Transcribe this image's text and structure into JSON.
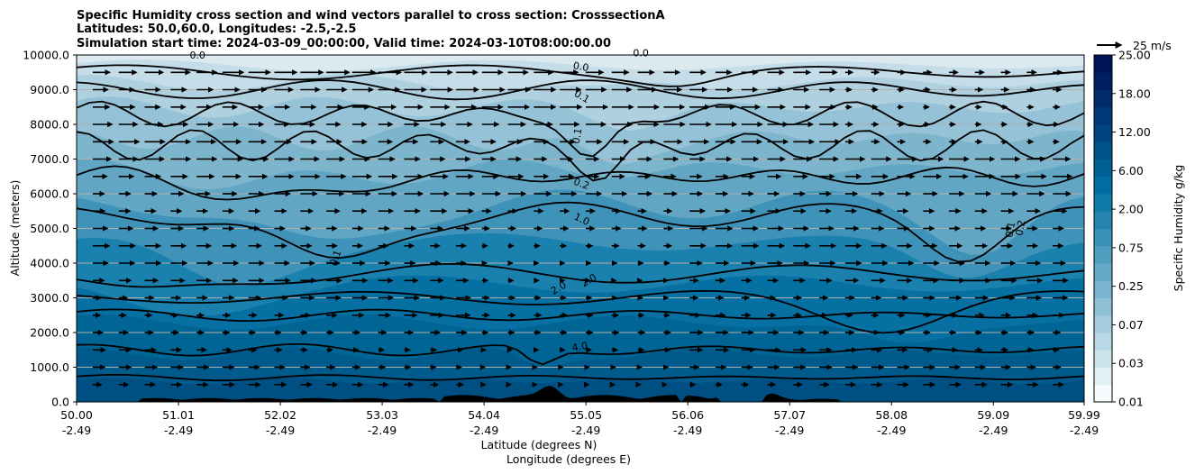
{
  "chart_data": {
    "type": "contourf",
    "title_lines": [
      "Specific Humidity cross section and wind vectors parallel to cross section: CrosssectionA",
      "Latitudes: 50.0,60.0, Longitudes: -2.5,-2.5",
      "Simulation start time: 2024-03-09_00:00:00, Valid time: 2024-03-10T08:00:00.00"
    ],
    "xlabel_lat": "Latitude (degrees N)",
    "xlabel_lon": "Longitude (degrees E)",
    "ylabel": "Altitude (meters)",
    "xlim": [
      50.0,
      59.99
    ],
    "ylim": [
      0,
      10000
    ],
    "x_ticks_lat": [
      "50.00",
      "51.01",
      "52.02",
      "53.03",
      "54.04",
      "55.05",
      "56.06",
      "57.07",
      "58.08",
      "59.09",
      "59.99"
    ],
    "x_ticks_lon": [
      "-2.49",
      "-2.49",
      "-2.49",
      "-2.49",
      "-2.49",
      "-2.49",
      "-2.49",
      "-2.49",
      "-2.49",
      "-2.49",
      "-2.49"
    ],
    "y_ticks": [
      "0.0",
      "1000.0",
      "2000.0",
      "3000.0",
      "4000.0",
      "5000.0",
      "6000.0",
      "7000.0",
      "8000.0",
      "9000.0",
      "10000.0"
    ],
    "colorbar": {
      "label": "Specific Humidity g/kg",
      "ticks": [
        "0.01",
        "0.03",
        "0.07",
        "0.25",
        "0.75",
        "2.00",
        "6.00",
        "12.00",
        "18.00",
        "25.00"
      ],
      "colors": [
        "#f7fbfd",
        "#e2eff4",
        "#cde3ec",
        "#b8d8e5",
        "#a3ccdd",
        "#8ec0d6",
        "#79b4ce",
        "#64a9c7",
        "#4f9dbf",
        "#3a91b8",
        "#2585b0",
        "#107aa9",
        "#006c9f",
        "#005f95",
        "#00528b",
        "#004581",
        "#003977",
        "#002c6d",
        "#001f63",
        "#001459"
      ]
    },
    "quiver_key": {
      "label": "25 m/s",
      "speed": 25
    },
    "contour_labels": [
      "0.0",
      "0.0",
      "0.0",
      "0.1",
      "0.1",
      "0.1",
      "0.1",
      "0.2",
      "0.2",
      "1.0",
      "2.0",
      "2.0",
      "4.0"
    ]
  }
}
